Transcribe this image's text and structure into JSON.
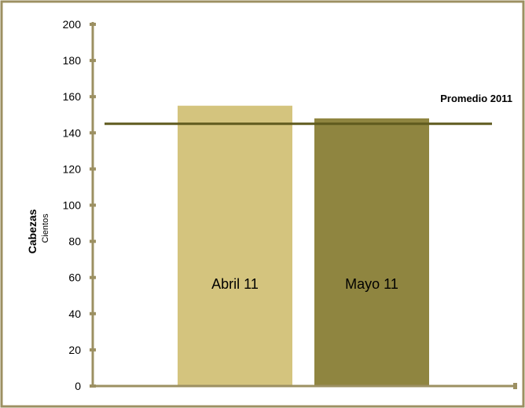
{
  "colors": {
    "frame": "#9C9062",
    "axis": "#9C9062",
    "bar_abril": "#D4C47E",
    "bar_mayo": "#8F8540",
    "average_line": "#5F5A1E"
  },
  "chart_data": {
    "type": "bar",
    "categories": [
      "Abril 11",
      "Mayo 11"
    ],
    "values": [
      155,
      148
    ],
    "ylim": [
      0,
      200
    ],
    "yticks": [
      0,
      20,
      40,
      60,
      80,
      100,
      120,
      140,
      160,
      180,
      200
    ],
    "ylabel": "Cabezas",
    "ylabel_unit": "Cientos",
    "average": {
      "label": "Promedio 2011",
      "value": 145
    },
    "grid": false,
    "legend": "none"
  }
}
